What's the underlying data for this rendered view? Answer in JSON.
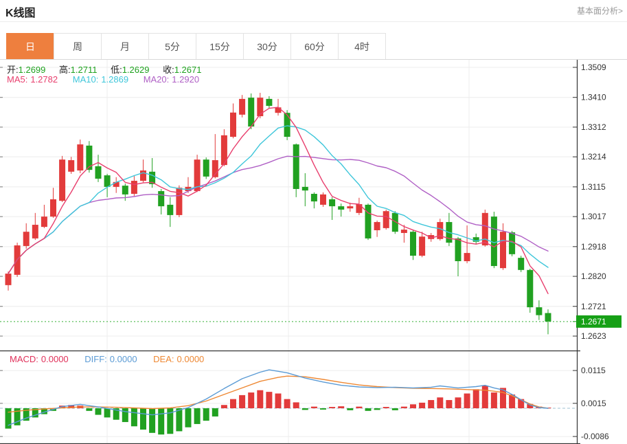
{
  "header": {
    "title": "K线图",
    "link": "基本面分析>"
  },
  "tabs": {
    "items": [
      "日",
      "周",
      "月",
      "5分",
      "15分",
      "30分",
      "60分",
      "4时"
    ],
    "selected_index": 0
  },
  "quote": {
    "open_label": "开:",
    "open": "1.2699",
    "high_label": "高:",
    "high": "1.2711",
    "low_label": "低:",
    "low": "1.2629",
    "close_label": "收:",
    "close": "1.2671",
    "ma5_label": "MA5:",
    "ma5": "1.2782",
    "ma10_label": "MA10:",
    "ma10": "1.2869",
    "ma20_label": "MA20:",
    "ma20": "1.2920"
  },
  "macd_header": {
    "macd_label": "MACD:",
    "macd": "0.0000",
    "diff_label": "DIFF:",
    "diff": "0.0000",
    "dea_label": "DEA:",
    "dea": "0.0000"
  },
  "colors": {
    "up": "#e23b3b",
    "down": "#21a121",
    "ma5": "#e83e6d",
    "ma10": "#3ec6da",
    "ma20": "#af5fc5",
    "macd_label": "#e0315a",
    "diff": "#5b9bd5",
    "dea": "#ee8833",
    "price_tag_bg": "#16a016",
    "price_tag_text": "#ffffff",
    "dotted_price_line": "#33b033",
    "tab_active_bg": "#ee7f3e",
    "tab_text": "#555555",
    "axis_text": "#333333",
    "grid": "#ececec",
    "frame": "#333333",
    "link_text": "#999999",
    "ohlc_value": "#1ea11e"
  },
  "chart_data": {
    "type": "candlestick+macd",
    "title": "K线图",
    "period_selected": "日",
    "main": {
      "y_axis_labels": [
        1.3509,
        1.341,
        1.3312,
        1.3214,
        1.3115,
        1.3017,
        1.2918,
        1.282,
        1.2721,
        1.2623
      ],
      "y_top": 1.3509,
      "y_bottom": 1.2623,
      "current_price": 1.2671,
      "current_price_label": "1.2671",
      "last_ohlc": {
        "open": 1.2699,
        "high": 1.2711,
        "low": 1.2629,
        "close": 1.2671
      },
      "ma_periods": [
        5,
        10,
        20
      ],
      "ma_display_values": {
        "ma5": 1.2782,
        "ma10": 1.2869,
        "ma20": 1.292
      },
      "candles_ohlc": [
        [
          1.2791,
          1.2836,
          1.2773,
          1.2829
        ],
        [
          1.2825,
          1.2931,
          1.2818,
          1.2922
        ],
        [
          1.292,
          1.2995,
          1.2911,
          1.2967
        ],
        [
          1.2945,
          1.3029,
          1.294,
          1.299
        ],
        [
          1.2983,
          1.3056,
          1.2979,
          1.3017
        ],
        [
          1.3017,
          1.3112,
          1.3013,
          1.3074
        ],
        [
          1.3069,
          1.3217,
          1.3065,
          1.3205
        ],
        [
          1.3165,
          1.3214,
          1.3158,
          1.3203
        ],
        [
          1.3169,
          1.3271,
          1.316,
          1.3255
        ],
        [
          1.3251,
          1.3266,
          1.3162,
          1.3171
        ],
        [
          1.3183,
          1.3221,
          1.3131,
          1.3142
        ],
        [
          1.3153,
          1.3158,
          1.3081,
          1.3115
        ],
        [
          1.3115,
          1.3147,
          1.3095,
          1.3131
        ],
        [
          1.3119,
          1.3126,
          1.3069,
          1.309
        ],
        [
          1.3092,
          1.3152,
          1.3085,
          1.3135
        ],
        [
          1.3135,
          1.3205,
          1.313,
          1.3169
        ],
        [
          1.3165,
          1.321,
          1.3112,
          1.3124
        ],
        [
          1.3101,
          1.3108,
          1.3024,
          1.3051
        ],
        [
          1.3056,
          1.3081,
          1.2983,
          1.3022
        ],
        [
          1.3022,
          1.312,
          1.3015,
          1.3112
        ],
        [
          1.3101,
          1.3147,
          1.3095,
          1.3115
        ],
        [
          1.3101,
          1.3221,
          1.3098,
          1.3205
        ],
        [
          1.3205,
          1.3212,
          1.3141,
          1.3149
        ],
        [
          1.3147,
          1.3289,
          1.3143,
          1.3203
        ],
        [
          1.3187,
          1.3305,
          1.3183,
          1.3285
        ],
        [
          1.328,
          1.339,
          1.3275,
          1.336
        ],
        [
          1.3353,
          1.3418,
          1.3344,
          1.3405
        ],
        [
          1.3409,
          1.3423,
          1.3305,
          1.3314
        ],
        [
          1.3348,
          1.3425,
          1.3341,
          1.3409
        ],
        [
          1.3405,
          1.3414,
          1.3373,
          1.3382
        ],
        [
          1.3359,
          1.3405,
          1.335,
          1.3377
        ],
        [
          1.3359,
          1.3368,
          1.3269,
          1.328
        ],
        [
          1.3255,
          1.3258,
          1.3081,
          1.3108
        ],
        [
          1.3115,
          1.316,
          1.3051,
          1.3103
        ],
        [
          1.3092,
          1.3097,
          1.3044,
          1.3067
        ],
        [
          1.3056,
          1.3097,
          1.3049,
          1.309
        ],
        [
          1.3074,
          1.3081,
          1.3006,
          1.3051
        ],
        [
          1.3051,
          1.306,
          1.3017,
          1.304
        ],
        [
          1.3044,
          1.3063,
          1.3033,
          1.3051
        ],
        [
          1.3029,
          1.3079,
          1.3022,
          1.3058
        ],
        [
          1.3056,
          1.306,
          1.294,
          1.2945
        ],
        [
          1.2972,
          1.3004,
          1.295,
          1.2999
        ],
        [
          1.2979,
          1.304,
          1.2974,
          1.3035
        ],
        [
          1.3029,
          1.3035,
          1.296,
          1.2967
        ],
        [
          1.2963,
          1.299,
          1.2931,
          1.2974
        ],
        [
          1.2967,
          1.2974,
          1.2874,
          1.2888
        ],
        [
          1.2888,
          1.2967,
          1.2883,
          1.2951
        ],
        [
          1.2943,
          1.2963,
          1.2934,
          1.2956
        ],
        [
          1.2943,
          1.301,
          1.2938,
          1.2999
        ],
        [
          1.2999,
          1.3029,
          1.292,
          1.2931
        ],
        [
          1.2945,
          1.295,
          1.282,
          1.287
        ],
        [
          1.287,
          1.2988,
          1.2863,
          1.2897
        ],
        [
          1.2949,
          1.2961,
          1.2925,
          1.2934
        ],
        [
          1.2922,
          1.304,
          1.2918,
          1.3029
        ],
        [
          1.3017,
          1.3033,
          1.2847,
          1.2854
        ],
        [
          1.2847,
          1.2995,
          1.2841,
          1.2967
        ],
        [
          1.2965,
          1.297,
          1.2886,
          1.2893
        ],
        [
          1.2881,
          1.2888,
          1.2834,
          1.2841
        ],
        [
          1.2841,
          1.2845,
          1.27,
          1.2718
        ],
        [
          1.2718,
          1.2741,
          1.2676,
          1.2692
        ],
        [
          1.2699,
          1.2711,
          1.2629,
          1.2671
        ]
      ]
    },
    "macd": {
      "y_axis_labels": [
        0.0115,
        0.0015,
        -0.0086
      ],
      "macd_value": 0.0,
      "diff_value": 0.0,
      "dea_value": 0.0,
      "histogram": [
        -0.0062,
        -0.0052,
        -0.0038,
        -0.0028,
        -0.0018,
        -0.0008,
        0.0008,
        0.001,
        0.0008,
        -0.0008,
        -0.002,
        -0.0028,
        -0.0035,
        -0.0042,
        -0.0055,
        -0.0065,
        -0.0075,
        -0.008,
        -0.0078,
        -0.007,
        -0.0058,
        -0.0048,
        -0.0038,
        -0.0025,
        0.001,
        0.0028,
        0.004,
        0.0048,
        0.0055,
        0.005,
        0.0045,
        0.0028,
        0.0018,
        -0.0005,
        0.0005,
        -0.0004,
        0.0004,
        0.0006,
        -0.0006,
        0.0005,
        -0.0008,
        -0.0005,
        0.0004,
        -0.0006,
        0.0005,
        0.0012,
        0.0017,
        0.0025,
        0.0033,
        0.0025,
        0.0033,
        0.0045,
        0.0058,
        0.0069,
        0.0048,
        0.0062,
        0.0042,
        0.0028,
        0.0013,
        0.0005,
        0.0002
      ],
      "diff_points": [
        [
          0,
          -0.0052
        ],
        [
          2,
          -0.003
        ],
        [
          4,
          -0.0012
        ],
        [
          6,
          0.0005
        ],
        [
          8,
          0.0012
        ],
        [
          10,
          0.0004
        ],
        [
          13,
          -0.001
        ],
        [
          16,
          -0.002
        ],
        [
          18,
          -0.0014
        ],
        [
          20,
          0.0002
        ],
        [
          22,
          0.0028
        ],
        [
          24,
          0.006
        ],
        [
          26,
          0.009
        ],
        [
          28,
          0.011
        ],
        [
          29,
          0.0117
        ],
        [
          31,
          0.0108
        ],
        [
          33,
          0.0092
        ],
        [
          35,
          0.008
        ],
        [
          37,
          0.007
        ],
        [
          39,
          0.0065
        ],
        [
          41,
          0.0063
        ],
        [
          43,
          0.0064
        ],
        [
          45,
          0.0062
        ],
        [
          47,
          0.0064
        ],
        [
          48,
          0.0068
        ],
        [
          50,
          0.0062
        ],
        [
          52,
          0.0066
        ],
        [
          53,
          0.007
        ],
        [
          54,
          0.0062
        ],
        [
          55,
          0.0056
        ],
        [
          56,
          0.0042
        ],
        [
          57,
          0.0026
        ],
        [
          58,
          0.001
        ],
        [
          59,
          0.0002
        ],
        [
          60,
          0.0
        ]
      ],
      "dea_points": [
        [
          0,
          -0.0012
        ],
        [
          2,
          -0.0006
        ],
        [
          4,
          -0.0002
        ],
        [
          6,
          0.0001
        ],
        [
          8,
          0.0004
        ],
        [
          10,
          0.0004
        ],
        [
          12,
          0.0003
        ],
        [
          14,
          0.0001
        ],
        [
          16,
          -0.0001
        ],
        [
          18,
          0.0001
        ],
        [
          20,
          0.0008
        ],
        [
          22,
          0.0022
        ],
        [
          24,
          0.0042
        ],
        [
          26,
          0.0062
        ],
        [
          28,
          0.0082
        ],
        [
          30,
          0.0094
        ],
        [
          31,
          0.0098
        ],
        [
          33,
          0.0096
        ],
        [
          35,
          0.0088
        ],
        [
          37,
          0.0079
        ],
        [
          39,
          0.0071
        ],
        [
          41,
          0.0066
        ],
        [
          43,
          0.0063
        ],
        [
          45,
          0.0061
        ],
        [
          47,
          0.006
        ],
        [
          49,
          0.0059
        ],
        [
          51,
          0.0057
        ],
        [
          53,
          0.0055
        ],
        [
          54,
          0.0052
        ],
        [
          55,
          0.0048
        ],
        [
          56,
          0.0038
        ],
        [
          57,
          0.0026
        ],
        [
          58,
          0.0013
        ],
        [
          59,
          0.0004
        ],
        [
          60,
          0.0
        ]
      ]
    },
    "layout_hints": {
      "vertical_gridlines_x": [
        156,
        420,
        683
      ],
      "grid": "on",
      "price_axis_side": "right"
    }
  }
}
